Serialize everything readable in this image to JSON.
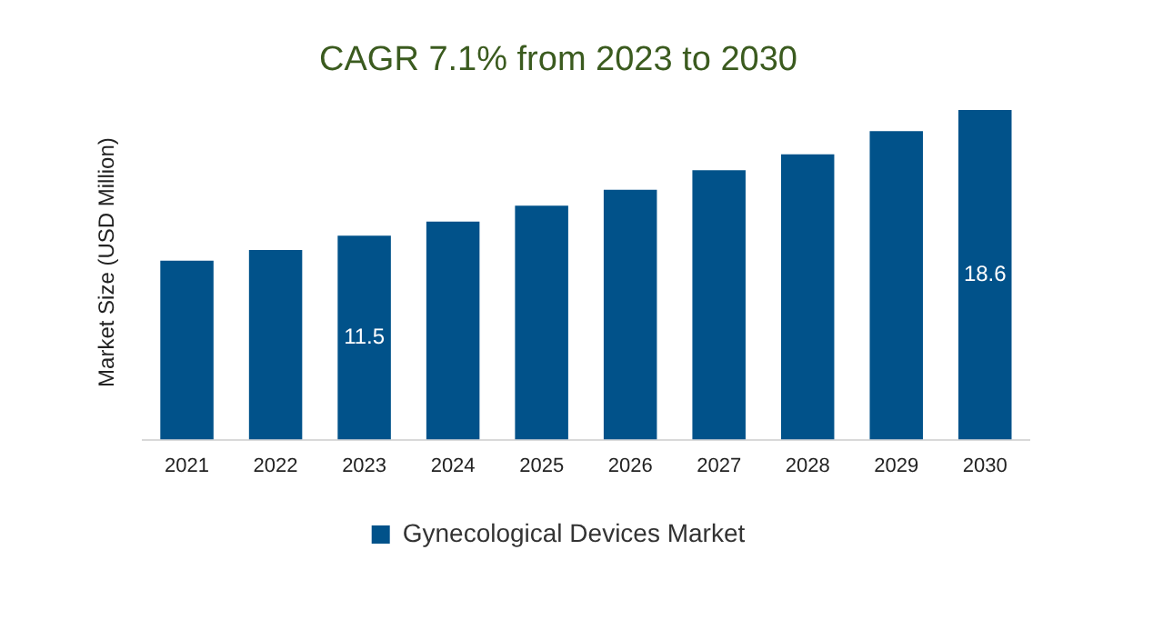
{
  "chart_data": {
    "type": "bar",
    "title": "CAGR 7.1% from 2023 to 2030",
    "ylabel": "Market Size (USD Million)",
    "categories": [
      "2021",
      "2022",
      "2023",
      "2024",
      "2025",
      "2026",
      "2027",
      "2028",
      "2029",
      "2030"
    ],
    "series": [
      {
        "name": "Gynecological Devices Market",
        "color": "#01528a",
        "values": [
          10.1,
          10.7,
          11.5,
          12.3,
          13.2,
          14.1,
          15.2,
          16.1,
          17.4,
          18.6
        ],
        "value_labels": [
          null,
          null,
          "11.5",
          null,
          null,
          null,
          null,
          null,
          null,
          "18.6"
        ]
      }
    ],
    "grid": false,
    "legend": "bottom"
  }
}
